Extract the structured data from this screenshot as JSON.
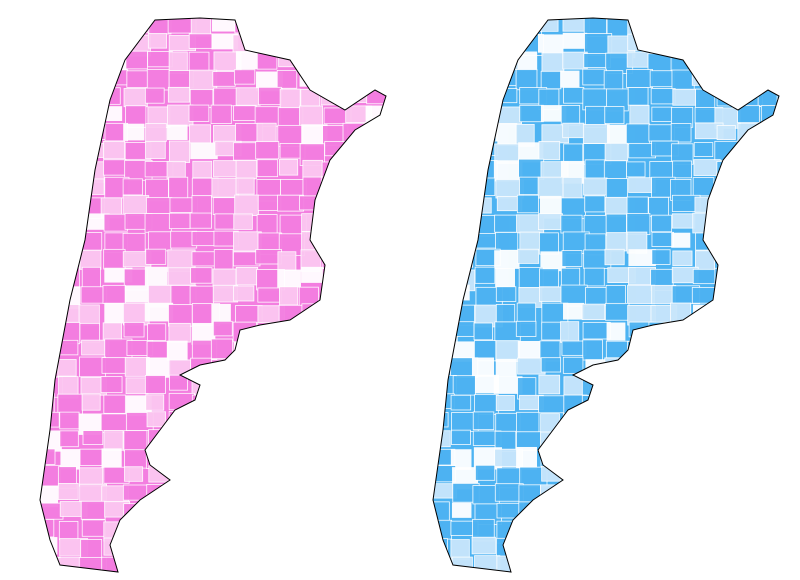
{
  "maps": [
    {
      "fill": "#f37ee0",
      "light": "#fbc8f1"
    },
    {
      "fill": "#4db3f2",
      "light": "#c9e6fb"
    }
  ]
}
